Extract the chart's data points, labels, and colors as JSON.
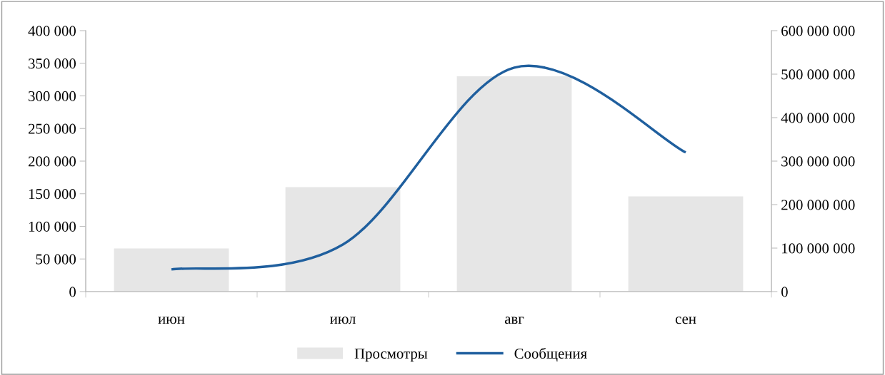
{
  "chart_data": {
    "type": "bar",
    "categories": [
      "июн",
      "июл",
      "авг",
      "сен"
    ],
    "series": [
      {
        "name": "Просмотры",
        "color": "#e6e6e6",
        "values": [
          66000,
          160000,
          330000,
          146000
        ]
      },
      {
        "name": "Сообщения",
        "type": "line",
        "axis": "y2",
        "color": "#1f5f9e",
        "values": [
          51000000,
          108000000,
          515000000,
          320000000
        ]
      }
    ],
    "ylim": [
      0,
      400000
    ],
    "yticks": [
      0,
      {
        "value": 50000,
        "label": "50 000"
      },
      {
        "value": 100000,
        "label": "100 000"
      },
      {
        "value": 150000,
        "label": "150 000"
      },
      {
        "value": 200000,
        "label": "200 000"
      },
      {
        "value": 250000,
        "label": "250 000"
      },
      {
        "value": 300000,
        "label": "300 000"
      },
      {
        "value": 350000,
        "label": "350 000"
      },
      {
        "value": 400000,
        "label": "400 000"
      }
    ],
    "y2lim": [
      0,
      600000000
    ],
    "y2ticks": [
      0,
      {
        "value": 100000000,
        "label": "100 000 000"
      },
      {
        "value": 200000000,
        "label": "200 000 000"
      },
      {
        "value": 300000000,
        "label": "300 000 000"
      },
      {
        "value": 400000000,
        "label": "400 000 000"
      },
      {
        "value": 500000000,
        "label": "500 000 000"
      },
      {
        "value": 600000000,
        "label": "600 000 000"
      }
    ],
    "grid": false,
    "legend": "bottom",
    "marker": "none",
    "line_style": "solid"
  }
}
